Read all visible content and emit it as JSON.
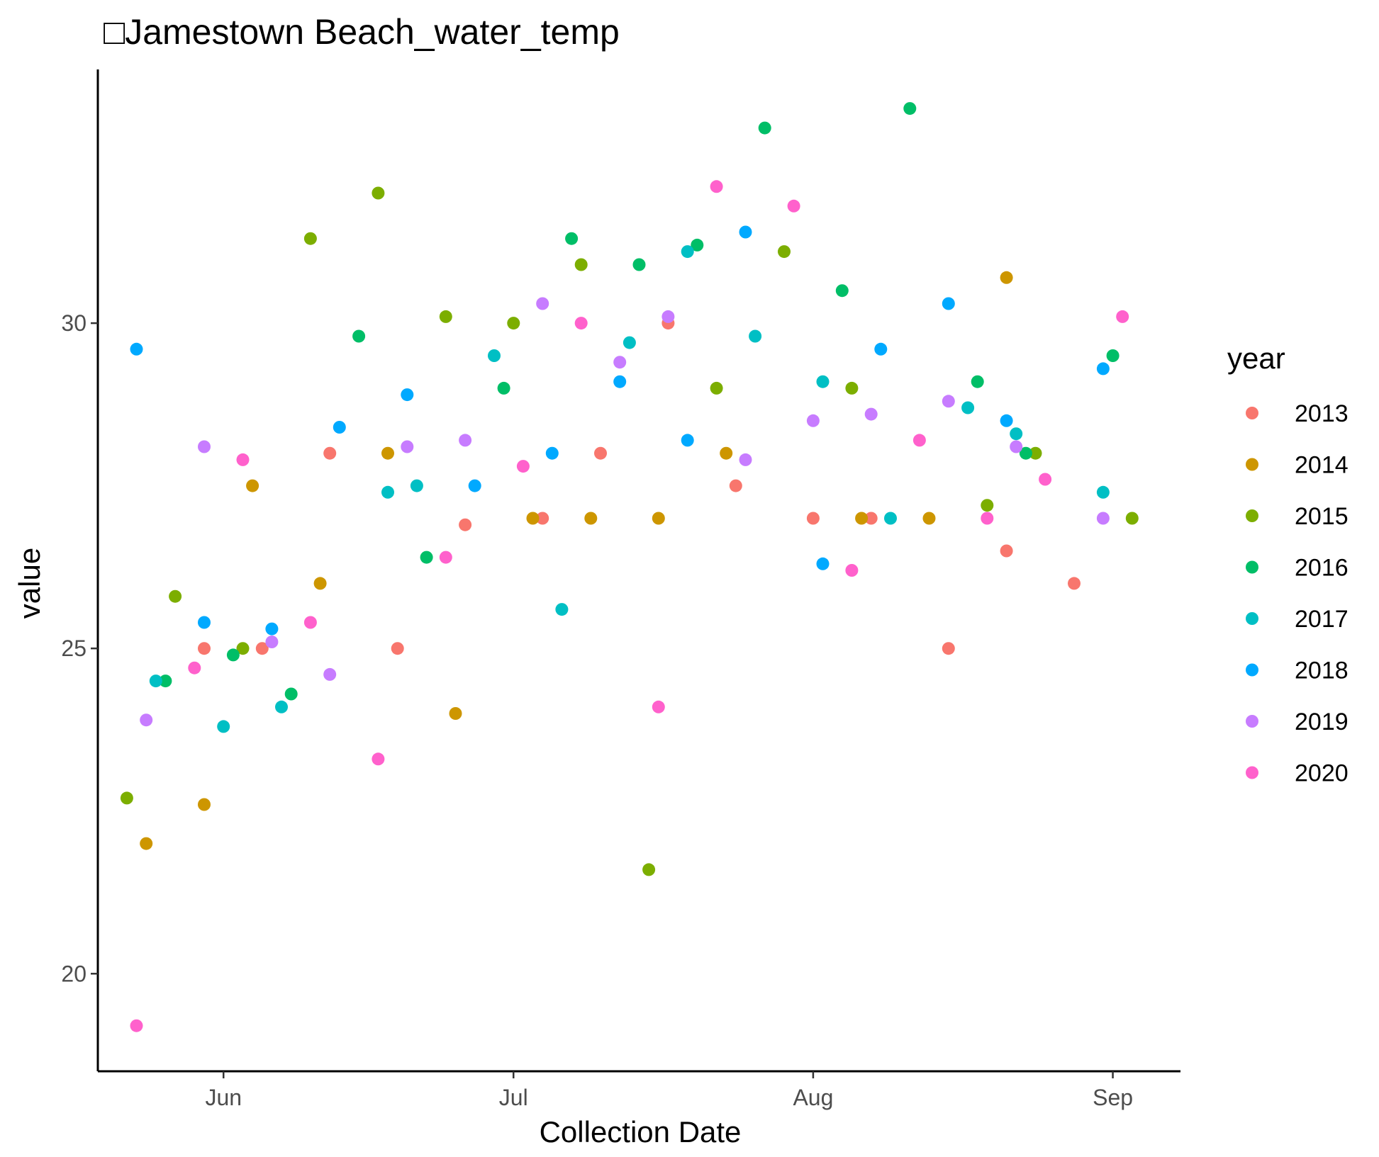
{
  "chart_data": {
    "type": "scatter",
    "title": "□Jamestown Beach_water_temp",
    "xlabel": "Collection Date",
    "ylabel": "value",
    "x_type": "date",
    "xlim": [
      "2019-05-19",
      "2019-09-08"
    ],
    "ylim": [
      18.5,
      33.9
    ],
    "x_ticks": [
      {
        "value": "2019-06-01",
        "label": "Jun"
      },
      {
        "value": "2019-07-01",
        "label": "Jul"
      },
      {
        "value": "2019-08-01",
        "label": "Aug"
      },
      {
        "value": "2019-09-01",
        "label": "Sep"
      }
    ],
    "y_ticks": [
      20,
      25,
      30
    ],
    "grid": false,
    "legend": {
      "title": "year",
      "position": "right"
    },
    "series": [
      {
        "name": "2013",
        "color": "#F8766D",
        "points": [
          [
            "2019-05-30",
            25.0
          ],
          [
            "2019-06-05",
            25.0
          ],
          [
            "2019-06-12",
            28.0
          ],
          [
            "2019-06-19",
            25.0
          ],
          [
            "2019-06-26",
            26.9
          ],
          [
            "2019-07-04",
            27.0
          ],
          [
            "2019-07-10",
            28.0
          ],
          [
            "2019-07-17",
            30.0
          ],
          [
            "2019-07-24",
            27.5
          ],
          [
            "2019-08-01",
            27.0
          ],
          [
            "2019-08-07",
            27.0
          ],
          [
            "2019-08-15",
            25.0
          ],
          [
            "2019-08-21",
            26.5
          ],
          [
            "2019-08-28",
            26.0
          ]
        ]
      },
      {
        "name": "2014",
        "color": "#CD9600",
        "points": [
          [
            "2019-05-24",
            22.0
          ],
          [
            "2019-05-30",
            22.6
          ],
          [
            "2019-06-04",
            27.5
          ],
          [
            "2019-06-11",
            26.0
          ],
          [
            "2019-06-18",
            28.0
          ],
          [
            "2019-06-25",
            24.0
          ],
          [
            "2019-07-03",
            27.0
          ],
          [
            "2019-07-09",
            27.0
          ],
          [
            "2019-07-16",
            27.0
          ],
          [
            "2019-07-23",
            28.0
          ],
          [
            "2019-08-06",
            27.0
          ],
          [
            "2019-08-13",
            27.0
          ],
          [
            "2019-08-21",
            30.7
          ]
        ]
      },
      {
        "name": "2015",
        "color": "#7CAE00",
        "points": [
          [
            "2019-05-22",
            22.7
          ],
          [
            "2019-05-27",
            25.8
          ],
          [
            "2019-06-03",
            25.0
          ],
          [
            "2019-06-10",
            31.3
          ],
          [
            "2019-06-17",
            32.0
          ],
          [
            "2019-06-24",
            30.1
          ],
          [
            "2019-07-01",
            30.0
          ],
          [
            "2019-07-08",
            30.9
          ],
          [
            "2019-07-15",
            21.6
          ],
          [
            "2019-07-22",
            29.0
          ],
          [
            "2019-07-29",
            31.1
          ],
          [
            "2019-08-05",
            29.0
          ],
          [
            "2019-08-19",
            27.2
          ],
          [
            "2019-08-24",
            28.0
          ],
          [
            "2019-09-03",
            27.0
          ]
        ]
      },
      {
        "name": "2016",
        "color": "#00BE67",
        "points": [
          [
            "2019-05-26",
            24.5
          ],
          [
            "2019-06-02",
            24.9
          ],
          [
            "2019-06-08",
            24.3
          ],
          [
            "2019-06-15",
            29.8
          ],
          [
            "2019-06-22",
            26.4
          ],
          [
            "2019-06-30",
            29.0
          ],
          [
            "2019-07-07",
            31.3
          ],
          [
            "2019-07-14",
            30.9
          ],
          [
            "2019-07-20",
            31.2
          ],
          [
            "2019-07-27",
            33.0
          ],
          [
            "2019-08-04",
            30.5
          ],
          [
            "2019-08-11",
            33.3
          ],
          [
            "2019-08-18",
            29.1
          ],
          [
            "2019-08-23",
            28.0
          ],
          [
            "2019-09-01",
            29.5
          ]
        ]
      },
      {
        "name": "2017",
        "color": "#00BFC4",
        "points": [
          [
            "2019-05-25",
            24.5
          ],
          [
            "2019-06-01",
            23.8
          ],
          [
            "2019-06-07",
            24.1
          ],
          [
            "2019-06-18",
            27.4
          ],
          [
            "2019-06-21",
            27.5
          ],
          [
            "2019-06-29",
            29.5
          ],
          [
            "2019-07-06",
            25.6
          ],
          [
            "2019-07-13",
            29.7
          ],
          [
            "2019-07-19",
            31.1
          ],
          [
            "2019-07-26",
            29.8
          ],
          [
            "2019-08-02",
            29.1
          ],
          [
            "2019-08-09",
            27.0
          ],
          [
            "2019-08-17",
            28.7
          ],
          [
            "2019-08-22",
            28.3
          ],
          [
            "2019-09-00",
            27.4
          ]
        ]
      },
      {
        "name": "2018",
        "color": "#00A9FF",
        "points": [
          [
            "2019-05-23",
            29.6
          ],
          [
            "2019-05-30",
            25.4
          ],
          [
            "2019-06-06",
            25.3
          ],
          [
            "2019-06-13",
            28.4
          ],
          [
            "2019-06-20",
            28.9
          ],
          [
            "2019-06-27",
            27.5
          ],
          [
            "2019-07-05",
            28.0
          ],
          [
            "2019-07-12",
            29.1
          ],
          [
            "2019-07-19",
            28.2
          ],
          [
            "2019-07-25",
            31.4
          ],
          [
            "2019-08-02",
            26.3
          ],
          [
            "2019-08-08",
            29.6
          ],
          [
            "2019-08-15",
            30.3
          ],
          [
            "2019-08-21",
            28.5
          ],
          [
            "2019-08-31",
            29.3
          ]
        ]
      },
      {
        "name": "2019",
        "color": "#C77CFF",
        "points": [
          [
            "2019-05-24",
            23.9
          ],
          [
            "2019-05-30",
            28.1
          ],
          [
            "2019-06-06",
            25.1
          ],
          [
            "2019-06-12",
            24.6
          ],
          [
            "2019-06-20",
            28.1
          ],
          [
            "2019-06-26",
            28.2
          ],
          [
            "2019-07-04",
            30.3
          ],
          [
            "2019-07-12",
            29.4
          ],
          [
            "2019-07-17",
            30.1
          ],
          [
            "2019-07-25",
            27.9
          ],
          [
            "2019-08-01",
            28.5
          ],
          [
            "2019-08-07",
            28.6
          ],
          [
            "2019-08-15",
            28.8
          ],
          [
            "2019-08-22",
            28.1
          ],
          [
            "2019-08-31",
            27.0
          ]
        ]
      },
      {
        "name": "2020",
        "color": "#FF61CC",
        "points": [
          [
            "2019-05-23",
            19.2
          ],
          [
            "2019-05-29",
            24.7
          ],
          [
            "2019-06-03",
            27.9
          ],
          [
            "2019-06-10",
            25.4
          ],
          [
            "2019-06-17",
            23.3
          ],
          [
            "2019-06-24",
            26.4
          ],
          [
            "2019-07-02",
            27.8
          ],
          [
            "2019-07-08",
            30.0
          ],
          [
            "2019-07-16",
            24.1
          ],
          [
            "2019-07-22",
            32.1
          ],
          [
            "2019-07-30",
            31.8
          ],
          [
            "2019-08-05",
            26.2
          ],
          [
            "2019-08-12",
            28.2
          ],
          [
            "2019-08-19",
            27.0
          ],
          [
            "2019-08-25",
            27.6
          ],
          [
            "2019-09-02",
            30.1
          ]
        ]
      }
    ]
  }
}
